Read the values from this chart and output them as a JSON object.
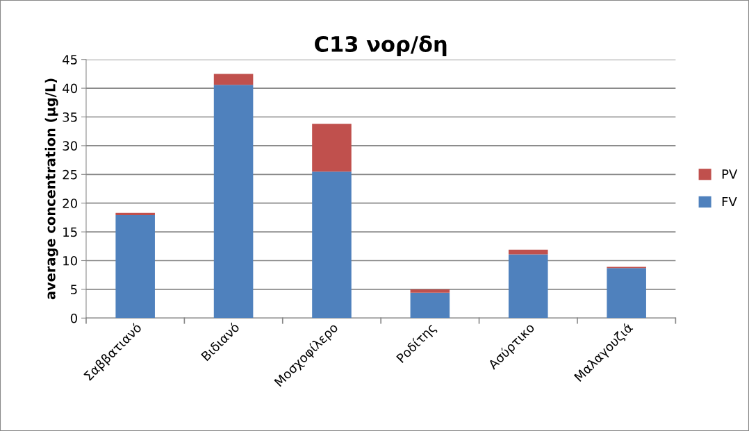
{
  "chart_data": {
    "type": "bar",
    "title": "C13 νορ/δη",
    "ylabel": "average concentration (μg/L)",
    "categories": [
      "Σαββατιανό",
      "Βιδιανό",
      "Μοσχοφίλερο",
      "Ροδίτης",
      "Ασύρτικο",
      "Μαλαγουζιά"
    ],
    "stacked": true,
    "series": [
      {
        "name": "FV",
        "color": "#4f81bd",
        "values": [
          17.9,
          40.6,
          25.5,
          4.4,
          11.1,
          8.7
        ]
      },
      {
        "name": "PV",
        "color": "#c0504d",
        "values": [
          0.4,
          1.9,
          8.3,
          0.6,
          0.8,
          0.2
        ]
      }
    ],
    "ylim": [
      0,
      45
    ],
    "yticks": [
      0,
      5,
      10,
      15,
      20,
      25,
      30,
      35,
      40,
      45
    ],
    "grid": "y",
    "legend": "right"
  }
}
